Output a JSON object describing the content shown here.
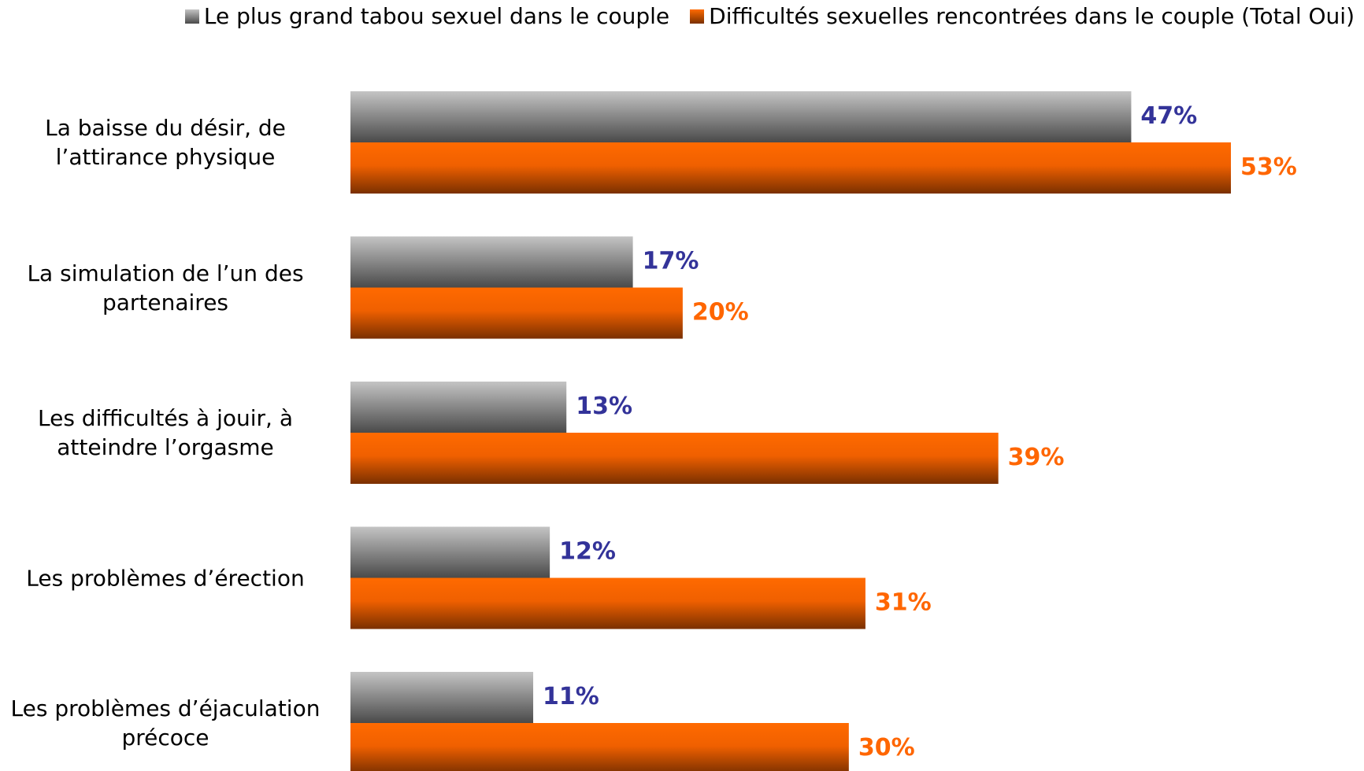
{
  "chart_data": {
    "type": "bar",
    "orientation": "horizontal",
    "categories": [
      "La baisse du désir, de\nl’attirance physique",
      "La simulation de l’un des\npartenaires",
      "Les difficultés à jouir, à\natteindre l’orgasme",
      "Les problèmes d’érection",
      "Les problèmes d’éjaculation\nprécoce"
    ],
    "series": [
      {
        "name": "Le plus grand tabou sexuel dans le couple",
        "color": "#808080",
        "label_color": "#333399",
        "values": [
          47,
          17,
          13,
          12,
          11
        ],
        "value_labels": [
          "47%",
          "17%",
          "13%",
          "12%",
          "11%"
        ]
      },
      {
        "name": "Difficultés sexuelles rencontrées dans le couple (Total Oui)",
        "color": "#ff6600",
        "label_color": "#ff6600",
        "values": [
          53,
          20,
          39,
          31,
          30
        ],
        "value_labels": [
          "53%",
          "20%",
          "39%",
          "31%",
          "30%"
        ]
      }
    ],
    "legend": "top-right",
    "grid": false
  }
}
